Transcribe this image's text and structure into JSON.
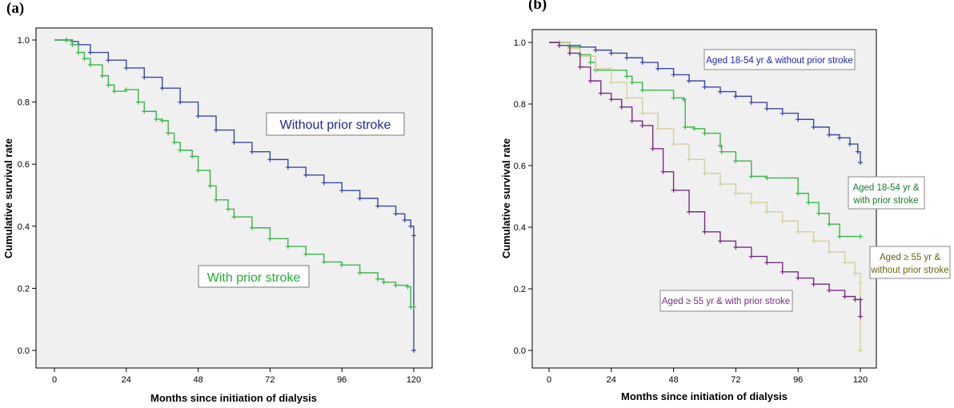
{
  "chart_data": [
    {
      "panel_label": "(a)",
      "type": "line",
      "subtype": "kaplan-meier",
      "xlabel": "Months since initiation of dialysis",
      "ylabel": "Cumulative survival rate",
      "xlim": [
        0,
        120
      ],
      "ylim": [
        0.0,
        1.0
      ],
      "xticks": [
        "0",
        "24",
        "48",
        "72",
        "96",
        "120"
      ],
      "yticks": [
        "0.0",
        "0.2",
        "0.4",
        "0.6",
        "0.8",
        "1.0"
      ],
      "series": [
        {
          "name": "Without prior stroke",
          "color": "#3a48a6",
          "x": [
            0,
            4,
            6,
            8,
            12,
            18,
            24,
            30,
            36,
            42,
            48,
            54,
            60,
            66,
            72,
            78,
            84,
            90,
            96,
            102,
            108,
            114,
            117,
            119,
            120,
            120
          ],
          "y": [
            1.0,
            1.0,
            0.995,
            0.985,
            0.96,
            0.935,
            0.91,
            0.88,
            0.845,
            0.8,
            0.755,
            0.71,
            0.67,
            0.64,
            0.615,
            0.59,
            0.565,
            0.54,
            0.515,
            0.49,
            0.465,
            0.44,
            0.42,
            0.4,
            0.37,
            0.0
          ]
        },
        {
          "name": "With prior stroke",
          "color": "#3cb54a",
          "x": [
            0,
            4,
            6,
            8,
            10,
            12,
            16,
            18,
            20,
            24,
            28,
            30,
            34,
            36,
            38,
            40,
            42,
            46,
            48,
            52,
            54,
            58,
            60,
            66,
            72,
            78,
            84,
            90,
            96,
            102,
            108,
            110,
            114,
            118,
            119,
            120
          ],
          "y": [
            1.0,
            1.0,
            0.985,
            0.96,
            0.94,
            0.92,
            0.885,
            0.855,
            0.835,
            0.84,
            0.8,
            0.77,
            0.745,
            0.74,
            0.7,
            0.67,
            0.645,
            0.625,
            0.58,
            0.53,
            0.485,
            0.455,
            0.43,
            0.395,
            0.36,
            0.335,
            0.31,
            0.285,
            0.275,
            0.25,
            0.23,
            0.22,
            0.21,
            0.205,
            0.14,
            0.14
          ]
        }
      ],
      "legend_labels": [
        {
          "text": "Without prior stroke",
          "color": "#2424a0"
        },
        {
          "text": "With prior stroke",
          "color": "#22b030"
        }
      ]
    },
    {
      "panel_label": "(b)",
      "type": "line",
      "subtype": "kaplan-meier",
      "xlabel": "Months since initiation of dialysis",
      "ylabel": "Cumulative survival rate",
      "xlim": [
        0,
        120
      ],
      "ylim": [
        0.0,
        1.0
      ],
      "xticks": [
        "0",
        "24",
        "48",
        "72",
        "96",
        "120"
      ],
      "yticks": [
        "0.0",
        "0.2",
        "0.4",
        "0.6",
        "0.8",
        "1.0"
      ],
      "series": [
        {
          "name": "Aged 18-54 yr & without prior stroke",
          "color": "#3a48a6",
          "x": [
            0,
            4,
            8,
            12,
            18,
            24,
            30,
            36,
            42,
            48,
            54,
            60,
            66,
            72,
            78,
            84,
            90,
            96,
            102,
            108,
            112,
            116,
            119,
            120
          ],
          "y": [
            1.0,
            1.0,
            0.99,
            0.985,
            0.975,
            0.965,
            0.95,
            0.935,
            0.915,
            0.895,
            0.875,
            0.855,
            0.84,
            0.825,
            0.805,
            0.785,
            0.77,
            0.75,
            0.725,
            0.7,
            0.69,
            0.67,
            0.645,
            0.61
          ]
        },
        {
          "name": "Aged 18-54 yr & with prior stroke",
          "color": "#3cb54a",
          "x": [
            0,
            8,
            12,
            16,
            18,
            24,
            30,
            32,
            36,
            48,
            52,
            52.5,
            56,
            60,
            66,
            66.5,
            72,
            78,
            84,
            96,
            100,
            104,
            108,
            112,
            120
          ],
          "y": [
            1.0,
            0.985,
            0.96,
            0.935,
            0.91,
            0.91,
            0.89,
            0.87,
            0.845,
            0.82,
            0.815,
            0.725,
            0.72,
            0.705,
            0.665,
            0.645,
            0.615,
            0.565,
            0.56,
            0.51,
            0.48,
            0.445,
            0.41,
            0.37,
            0.37
          ]
        },
        {
          "name": "Aged ≥ 55 yr & without prior stroke",
          "color": "#d5d09a",
          "x": [
            0,
            4,
            8,
            12,
            18,
            24,
            30,
            36,
            42,
            48,
            54,
            60,
            66,
            72,
            78,
            84,
            90,
            96,
            102,
            108,
            114,
            118,
            120,
            120
          ],
          "y": [
            1.0,
            1.0,
            0.98,
            0.955,
            0.915,
            0.87,
            0.82,
            0.77,
            0.72,
            0.67,
            0.62,
            0.575,
            0.54,
            0.51,
            0.48,
            0.45,
            0.42,
            0.385,
            0.355,
            0.32,
            0.285,
            0.25,
            0.22,
            0.0
          ]
        },
        {
          "name": "Aged ≥ 55 yr & with prior stroke",
          "color": "#7a2c82",
          "x": [
            0,
            4,
            8,
            12,
            16,
            20,
            24,
            28,
            32,
            36,
            40,
            44,
            48,
            54,
            60,
            66,
            72,
            78,
            84,
            90,
            96,
            102,
            108,
            114,
            118,
            120,
            120
          ],
          "y": [
            1.0,
            0.99,
            0.965,
            0.92,
            0.875,
            0.835,
            0.815,
            0.79,
            0.745,
            0.73,
            0.655,
            0.58,
            0.52,
            0.45,
            0.385,
            0.355,
            0.335,
            0.305,
            0.285,
            0.255,
            0.235,
            0.215,
            0.195,
            0.175,
            0.165,
            0.165,
            0.11
          ]
        }
      ],
      "legend_labels": [
        {
          "lines": [
            "Aged 18-54 yr & without prior stroke"
          ],
          "color": "#1a24b0"
        },
        {
          "lines": [
            "Aged 18-54 yr &",
            "with prior stroke"
          ],
          "color": "#1a7a2a"
        },
        {
          "lines": [
            "Aged ≥ 55 yr &",
            "without prior stroke"
          ],
          "color": "#6a6410"
        },
        {
          "lines": [
            "Aged ≥ 55 yr & with prior stroke"
          ],
          "color": "#7a2c82"
        }
      ]
    }
  ]
}
